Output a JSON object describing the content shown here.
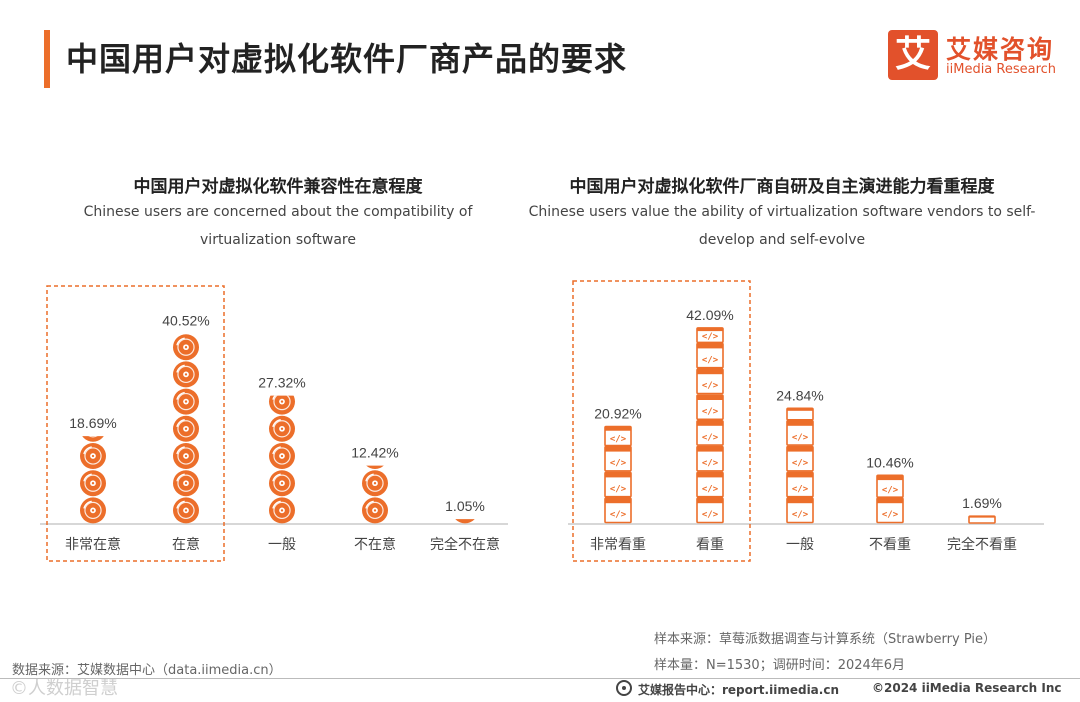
{
  "header": {
    "title": "中国用户对虚拟化软件厂商产品的要求"
  },
  "logo": {
    "mark": "艾",
    "name_cn": "艾媒咨询",
    "name_en": "iiMedia Research"
  },
  "colors": {
    "accent": "#ec6e2a",
    "logo": "#e2512b",
    "highlight_border": "#ec6e2a"
  },
  "chart_data": [
    {
      "type": "bar",
      "title": "中国用户对虚拟化软件兼容性在意程度",
      "subtitle_lines": [
        "Chinese users are concerned about the compatibility of",
        "virtualization software"
      ],
      "categories": [
        "非常在意",
        "在意",
        "一般",
        "不在意",
        "完全不在意"
      ],
      "values": [
        18.69,
        40.52,
        27.32,
        12.42,
        1.05
      ],
      "value_labels": [
        "18.69%",
        "40.52%",
        "27.32%",
        "12.42%",
        "1.05%"
      ],
      "highlighted_categories": [
        "非常在意",
        "在意"
      ],
      "icon": "disc-icon",
      "ylim": [
        0,
        45
      ]
    },
    {
      "type": "bar",
      "title": "中国用户对虚拟化软件厂商自研及自主演进能力看重程度",
      "subtitle_lines": [
        "Chinese users value the ability of virtualization software vendors to self-",
        "develop and self-evolve"
      ],
      "categories": [
        "非常看重",
        "看重",
        "一般",
        "不看重",
        "完全不看重"
      ],
      "values": [
        20.92,
        42.09,
        24.84,
        10.46,
        1.69
      ],
      "value_labels": [
        "20.92%",
        "42.09%",
        "24.84%",
        "10.46%",
        "1.69%"
      ],
      "highlighted_categories": [
        "非常看重",
        "看重"
      ],
      "icon": "code-window-icon",
      "ylim": [
        0,
        45
      ]
    }
  ],
  "notes": {
    "sample_source": "样本来源：草莓派数据调查与计算系统（Strawberry Pie）",
    "sample_size": "样本量：N=1530；调研时间：2024年6月",
    "data_source": "数据来源：艾媒数据中心（data.iimedia.cn）"
  },
  "footer": {
    "report_center": "艾媒报告中心：report.iimedia.cn",
    "copyright": "©2024  iiMedia Research  Inc",
    "watermark": "©人数据智慧"
  }
}
